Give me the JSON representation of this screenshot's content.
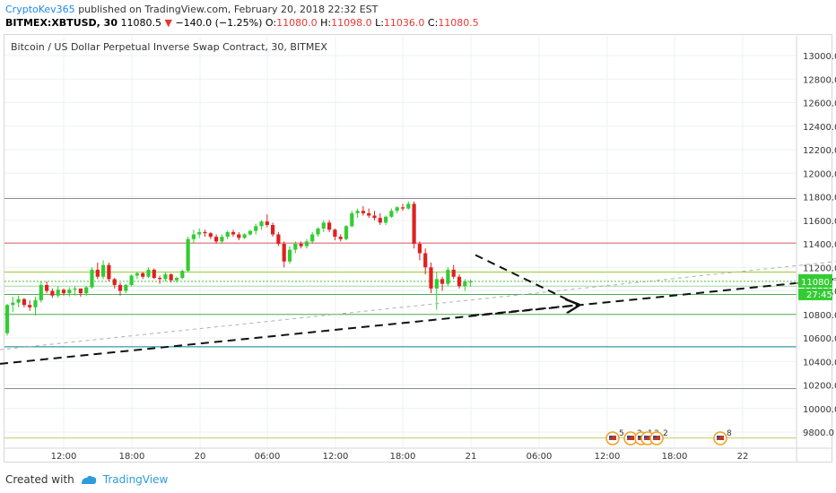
{
  "header": {
    "author": "CryptoKev365",
    "published_text": "published on TradingView.com, February 20, 2018 22:32 EST",
    "symbol": "BITMEX:XBTUSD, 30",
    "last": "11080.5",
    "change_arrow": "▼",
    "change": "−140.0 (−1.25%)",
    "o_label": "O:",
    "o_val": "11080.0",
    "h_label": "H:",
    "h_val": "11098.0",
    "l_label": "L:",
    "l_val": "11036.0",
    "c_label": "C:",
    "c_val": "11080.5"
  },
  "footer": {
    "created_with": "Created with",
    "brand": "TradingView"
  },
  "colors": {
    "up": "#33cc33",
    "down": "#e02020",
    "price_tag": "#33cc33"
  },
  "chart_data": {
    "type": "candlestick",
    "title": "Bitcoin / US Dollar Perpetual Inverse Swap Contract, 30, BITMEX",
    "xlabel": "",
    "ylabel": "",
    "ylim": [
      9650,
      13200
    ],
    "y_ticks": [
      "13000.0",
      "12800.0",
      "12600.0",
      "12400.0",
      "12200.0",
      "12000.0",
      "11800.0",
      "11600.0",
      "11400.0",
      "11200.0",
      "11000.0",
      "10800.0",
      "10600.0",
      "10400.0",
      "10200.0",
      "10000.0",
      "9800.0"
    ],
    "x_ticks": [
      "12:00",
      "18:00",
      "20",
      "06:00",
      "12:00",
      "18:00",
      "21",
      "06:00",
      "12:00",
      "18:00",
      "22"
    ],
    "last_price_label": "11080.5",
    "countdown_label": "27:45",
    "candles": [
      [
        10640,
        10890,
        10620,
        10880
      ],
      [
        10880,
        10950,
        10820,
        10900
      ],
      [
        10900,
        10960,
        10860,
        10930
      ],
      [
        10930,
        10940,
        10860,
        10880
      ],
      [
        10880,
        10920,
        10830,
        10860
      ],
      [
        10860,
        10950,
        10790,
        10920
      ],
      [
        10920,
        11080,
        10900,
        11050
      ],
      [
        11050,
        11080,
        10980,
        11000
      ],
      [
        11000,
        11020,
        10940,
        10960
      ],
      [
        10960,
        11040,
        10940,
        11010
      ],
      [
        11010,
        11020,
        10960,
        10980
      ],
      [
        10980,
        11030,
        10950,
        11010
      ],
      [
        11010,
        11040,
        10960,
        11020
      ],
      [
        11020,
        11020,
        10950,
        10980
      ],
      [
        10980,
        11040,
        10960,
        11030
      ],
      [
        11030,
        11200,
        11020,
        11180
      ],
      [
        11180,
        11240,
        11100,
        11120
      ],
      [
        11120,
        11260,
        11100,
        11220
      ],
      [
        11220,
        11240,
        11080,
        11100
      ],
      [
        11100,
        11110,
        11020,
        11050
      ],
      [
        11050,
        11070,
        10960,
        11000
      ],
      [
        11000,
        11060,
        10980,
        11050
      ],
      [
        11050,
        11140,
        11040,
        11130
      ],
      [
        11130,
        11160,
        11100,
        11150
      ],
      [
        11150,
        11160,
        11100,
        11120
      ],
      [
        11120,
        11200,
        11110,
        11180
      ],
      [
        11180,
        11190,
        11100,
        11110
      ],
      [
        11110,
        11130,
        11060,
        11100
      ],
      [
        11100,
        11160,
        11080,
        11140
      ],
      [
        11140,
        11150,
        11070,
        11090
      ],
      [
        11090,
        11120,
        11070,
        11110
      ],
      [
        11110,
        11180,
        11100,
        11170
      ],
      [
        11170,
        11460,
        11160,
        11440
      ],
      [
        11440,
        11520,
        11400,
        11480
      ],
      [
        11480,
        11530,
        11450,
        11500
      ],
      [
        11500,
        11520,
        11460,
        11490
      ],
      [
        11490,
        11500,
        11440,
        11460
      ],
      [
        11460,
        11480,
        11400,
        11420
      ],
      [
        11420,
        11480,
        11400,
        11460
      ],
      [
        11460,
        11510,
        11440,
        11500
      ],
      [
        11500,
        11520,
        11460,
        11480
      ],
      [
        11480,
        11500,
        11430,
        11450
      ],
      [
        11450,
        11490,
        11440,
        11480
      ],
      [
        11480,
        11520,
        11470,
        11510
      ],
      [
        11510,
        11570,
        11480,
        11550
      ],
      [
        11550,
        11600,
        11520,
        11590
      ],
      [
        11590,
        11650,
        11540,
        11560
      ],
      [
        11560,
        11580,
        11460,
        11480
      ],
      [
        11480,
        11500,
        11380,
        11400
      ],
      [
        11400,
        11420,
        11200,
        11250
      ],
      [
        11250,
        11380,
        11230,
        11350
      ],
      [
        11350,
        11420,
        11320,
        11400
      ],
      [
        11400,
        11420,
        11360,
        11380
      ],
      [
        11380,
        11440,
        11360,
        11420
      ],
      [
        11420,
        11500,
        11400,
        11480
      ],
      [
        11480,
        11540,
        11460,
        11530
      ],
      [
        11530,
        11600,
        11500,
        11580
      ],
      [
        11580,
        11600,
        11500,
        11520
      ],
      [
        11520,
        11530,
        11430,
        11460
      ],
      [
        11460,
        11480,
        11420,
        11440
      ],
      [
        11440,
        11560,
        11430,
        11550
      ],
      [
        11550,
        11680,
        11540,
        11660
      ],
      [
        11660,
        11700,
        11620,
        11680
      ],
      [
        11680,
        11720,
        11640,
        11660
      ],
      [
        11660,
        11700,
        11620,
        11640
      ],
      [
        11640,
        11680,
        11600,
        11620
      ],
      [
        11620,
        11660,
        11560,
        11580
      ],
      [
        11580,
        11640,
        11560,
        11630
      ],
      [
        11630,
        11700,
        11620,
        11680
      ],
      [
        11680,
        11720,
        11660,
        11710
      ],
      [
        11710,
        11740,
        11680,
        11700
      ],
      [
        11700,
        11760,
        11690,
        11740
      ],
      [
        11740,
        11760,
        11360,
        11400
      ],
      [
        11400,
        11420,
        11260,
        11320
      ],
      [
        11320,
        11360,
        11140,
        11200
      ],
      [
        11200,
        11240,
        10980,
        11020
      ],
      [
        11020,
        11160,
        10840,
        11100
      ],
      [
        11100,
        11120,
        11000,
        11060
      ],
      [
        11060,
        11200,
        11040,
        11180
      ],
      [
        11180,
        11220,
        11100,
        11120
      ],
      [
        11120,
        11140,
        11020,
        11040
      ],
      [
        11040,
        11100,
        11000,
        11080
      ],
      [
        11080,
        11098,
        11036,
        11080.5
      ]
    ],
    "horizontal_levels": [
      {
        "price": 11785,
        "color": "#8c8c8c",
        "style": "solid"
      },
      {
        "price": 11407,
        "color": "#e06060",
        "style": "solid"
      },
      {
        "price": 11160,
        "color": "#9acd32",
        "style": "solid"
      },
      {
        "price": 11080.5,
        "color": "#33cc33",
        "style": "dotted"
      },
      {
        "price": 11040,
        "color": "#a5d6a7",
        "style": "solid"
      },
      {
        "price": 10970,
        "color": "#4caf50",
        "style": "solid"
      },
      {
        "price": 10800,
        "color": "#4caf50",
        "style": "solid"
      },
      {
        "price": 10525,
        "color": "#00838f",
        "style": "solid"
      },
      {
        "price": 10170,
        "color": "#8c8c8c",
        "style": "solid"
      },
      {
        "price": 9750,
        "color": "#c8c864",
        "style": "solid"
      }
    ],
    "trend_lines": [
      {
        "x1": 0,
        "y1": 10380,
        "x2": 932,
        "y2": 11100,
        "color": "#111111",
        "dash": "9,6",
        "width": 2,
        "arrow": false
      },
      {
        "x1": 0,
        "y1": 10500,
        "x2": 932,
        "y2": 11250,
        "color": "#b0b0b0",
        "dash": "4,4",
        "width": 1,
        "arrow": false
      },
      {
        "x1": 525,
        "y1": 10790,
        "x2": 645,
        "y2": 10880,
        "color": "#111111",
        "dash": "9,6",
        "width": 2,
        "arrow": true
      },
      {
        "x1": 530,
        "y1": 11305,
        "x2": 645,
        "y2": 10880,
        "color": "#111111",
        "dash": "9,6",
        "width": 2,
        "arrow": false
      }
    ],
    "events": [
      {
        "x": 683,
        "label": "5"
      },
      {
        "x": 703,
        "label": "2"
      },
      {
        "x": 715,
        "label": "1"
      },
      {
        "x": 722,
        "label": "3"
      },
      {
        "x": 732,
        "label": "2"
      },
      {
        "x": 803,
        "label": "8"
      }
    ]
  }
}
